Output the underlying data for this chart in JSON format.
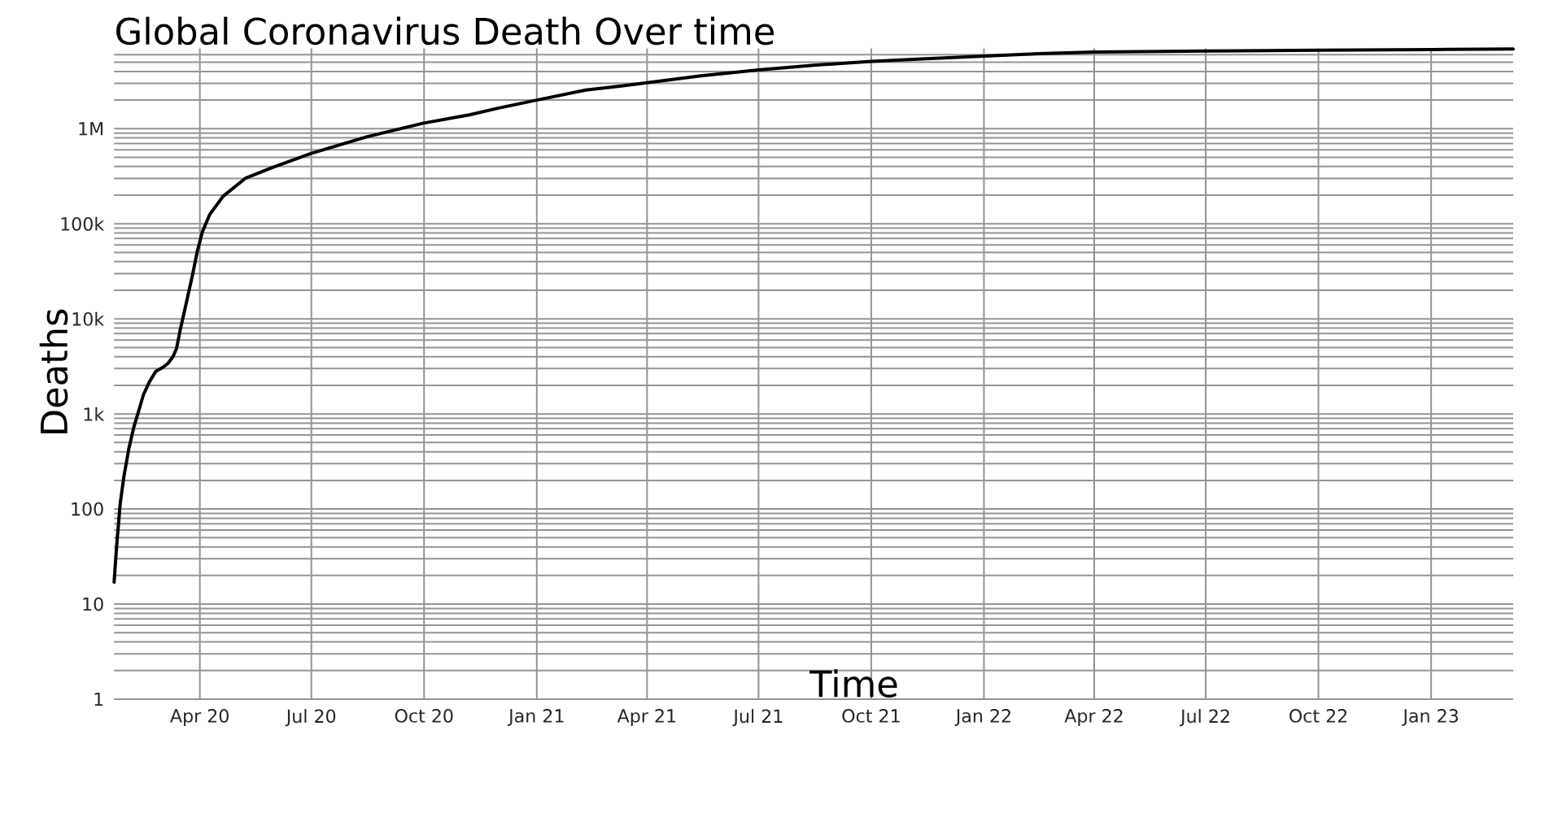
{
  "chart_data": {
    "type": "line",
    "title": "Global Coronavirus Death Over time",
    "xlabel": "Time",
    "ylabel": "Deaths",
    "x": [
      "2020-01-22",
      "2020-01-24",
      "2020-01-27",
      "2020-01-30",
      "2020-02-03",
      "2020-02-07",
      "2020-02-11",
      "2020-02-15",
      "2020-02-20",
      "2020-02-25",
      "2020-03-01",
      "2020-03-06",
      "2020-03-10",
      "2020-03-13",
      "2020-03-16",
      "2020-03-19",
      "2020-03-22",
      "2020-03-26",
      "2020-03-30",
      "2020-04-03",
      "2020-04-09",
      "2020-04-20",
      "2020-05-08",
      "2020-05-30",
      "2020-07-01",
      "2020-08-15",
      "2020-09-30",
      "2020-11-07",
      "2020-12-01",
      "2021-01-01",
      "2021-02-10",
      "2021-03-15",
      "2021-04-01",
      "2021-05-15",
      "2021-07-01",
      "2021-08-15",
      "2021-10-01",
      "2021-11-15",
      "2022-01-01",
      "2022-02-15",
      "2022-04-01",
      "2022-07-01",
      "2022-10-01",
      "2023-01-01",
      "2023-03-09"
    ],
    "values": [
      17,
      40,
      115,
      220,
      430,
      720,
      1070,
      1600,
      2200,
      2800,
      3050,
      3400,
      4000,
      4900,
      7700,
      11400,
      17000,
      29000,
      52000,
      82000,
      125000,
      195000,
      300000,
      390000,
      550000,
      820000,
      1140000,
      1400000,
      1650000,
      2000000,
      2550000,
      2850000,
      3050000,
      3600000,
      4150000,
      4650000,
      5100000,
      5450000,
      5800000,
      6150000,
      6400000,
      6550000,
      6700000,
      6800000,
      6900000
    ],
    "color": "#000000",
    "xlim": [
      "2020-01-22",
      "2023-03-09"
    ],
    "ylim": [
      1,
      7000000
    ],
    "xticks": [
      {
        "value": "2020-04-01",
        "label": "Apr 20"
      },
      {
        "value": "2020-07-01",
        "label": "Jul 20"
      },
      {
        "value": "2020-10-01",
        "label": "Oct 20"
      },
      {
        "value": "2021-01-01",
        "label": "Jan 21"
      },
      {
        "value": "2021-04-01",
        "label": "Apr 21"
      },
      {
        "value": "2021-07-01",
        "label": "Jul 21"
      },
      {
        "value": "2021-10-01",
        "label": "Oct 21"
      },
      {
        "value": "2022-01-01",
        "label": "Jan 22"
      },
      {
        "value": "2022-04-01",
        "label": "Apr 22"
      },
      {
        "value": "2022-07-01",
        "label": "Jul 22"
      },
      {
        "value": "2022-10-01",
        "label": "Oct 22"
      },
      {
        "value": "2023-01-01",
        "label": "Jan 23"
      }
    ],
    "yticks": [
      1,
      10,
      100,
      {
        "value": 1000,
        "label": "1k"
      },
      {
        "value": 10000,
        "label": "10k"
      },
      {
        "value": 100000,
        "label": "100k"
      },
      {
        "value": 1000000,
        "label": "1M"
      }
    ],
    "log": true,
    "grid": true
  }
}
